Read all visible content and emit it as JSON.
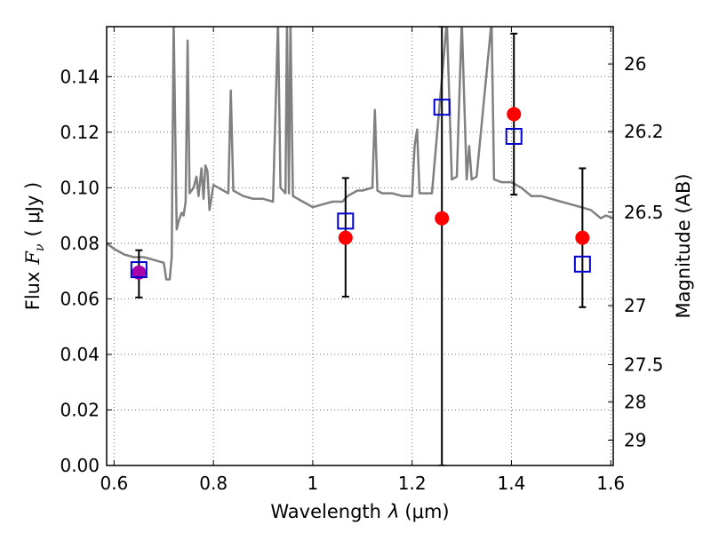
{
  "chart_data": {
    "type": "scatter",
    "xlabel_text": "Wavelength",
    "xlabel_symbol": "λ",
    "xlabel_unit": "(μm)",
    "ylabel_text": "Flux",
    "ylabel_symbol": "F",
    "ylabel_sub": "ν",
    "ylabel_unit": "( μJy )",
    "y2label": "Magnitude (AB)",
    "xlim": [
      0.585,
      1.605
    ],
    "ylim": [
      0.0,
      0.158
    ],
    "x_ticks": [
      0.6,
      0.8,
      1.0,
      1.2,
      1.4,
      1.6
    ],
    "x_tick_labels": [
      "0.6",
      "0.8",
      "1",
      "1.2",
      "1.4",
      "1.6"
    ],
    "y_ticks": [
      0.0,
      0.02,
      0.04,
      0.06,
      0.08,
      0.1,
      0.12,
      0.14
    ],
    "y_tick_labels": [
      "0.00",
      "0.02",
      "0.04",
      "0.06",
      "0.08",
      "0.10",
      "0.12",
      "0.14"
    ],
    "y2_ticks": [
      {
        "label": "26",
        "mag": 26.0
      },
      {
        "label": "26.2",
        "mag": 26.2
      },
      {
        "label": "26.5",
        "mag": 26.5
      },
      {
        "label": "27",
        "mag": 27.0
      },
      {
        "label": "27.5",
        "mag": 27.5
      },
      {
        "label": "28",
        "mag": 28.0
      },
      {
        "label": "29",
        "mag": 29.0
      }
    ],
    "grid": true,
    "series": [
      {
        "kind": "model-spectrum-line",
        "color": "#808080",
        "points": [
          [
            0.585,
            0.08
          ],
          [
            0.6,
            0.078
          ],
          [
            0.62,
            0.076
          ],
          [
            0.64,
            0.075
          ],
          [
            0.66,
            0.075
          ],
          [
            0.68,
            0.074
          ],
          [
            0.7,
            0.073
          ],
          [
            0.705,
            0.067
          ],
          [
            0.712,
            0.067
          ],
          [
            0.716,
            0.075
          ],
          [
            0.72,
            0.16
          ],
          [
            0.726,
            0.085
          ],
          [
            0.73,
            0.088
          ],
          [
            0.736,
            0.091
          ],
          [
            0.74,
            0.09
          ],
          [
            0.744,
            0.095
          ],
          [
            0.748,
            0.153
          ],
          [
            0.752,
            0.098
          ],
          [
            0.76,
            0.1
          ],
          [
            0.766,
            0.104
          ],
          [
            0.77,
            0.097
          ],
          [
            0.776,
            0.107
          ],
          [
            0.78,
            0.096
          ],
          [
            0.784,
            0.108
          ],
          [
            0.788,
            0.106
          ],
          [
            0.792,
            0.092
          ],
          [
            0.8,
            0.101
          ],
          [
            0.82,
            0.099
          ],
          [
            0.83,
            0.098
          ],
          [
            0.835,
            0.135
          ],
          [
            0.84,
            0.099
          ],
          [
            0.86,
            0.097
          ],
          [
            0.88,
            0.096
          ],
          [
            0.9,
            0.096
          ],
          [
            0.92,
            0.095
          ],
          [
            0.93,
            0.16
          ],
          [
            0.935,
            0.1
          ],
          [
            0.945,
            0.098
          ],
          [
            0.948,
            0.16
          ],
          [
            0.952,
            0.098
          ],
          [
            0.955,
            0.16
          ],
          [
            0.96,
            0.097
          ],
          [
            0.98,
            0.095
          ],
          [
            1.0,
            0.093
          ],
          [
            1.02,
            0.094
          ],
          [
            1.04,
            0.095
          ],
          [
            1.06,
            0.095
          ],
          [
            1.07,
            0.097
          ],
          [
            1.09,
            0.099
          ],
          [
            1.1,
            0.099
          ],
          [
            1.12,
            0.1
          ],
          [
            1.125,
            0.128
          ],
          [
            1.13,
            0.099
          ],
          [
            1.14,
            0.098
          ],
          [
            1.16,
            0.098
          ],
          [
            1.18,
            0.097
          ],
          [
            1.2,
            0.097
          ],
          [
            1.205,
            0.115
          ],
          [
            1.21,
            0.121
          ],
          [
            1.215,
            0.098
          ],
          [
            1.22,
            0.098
          ],
          [
            1.24,
            0.098
          ],
          [
            1.27,
            0.16
          ],
          [
            1.28,
            0.103
          ],
          [
            1.29,
            0.104
          ],
          [
            1.3,
            0.16
          ],
          [
            1.31,
            0.103
          ],
          [
            1.315,
            0.115
          ],
          [
            1.32,
            0.103
          ],
          [
            1.33,
            0.104
          ],
          [
            1.36,
            0.16
          ],
          [
            1.365,
            0.103
          ],
          [
            1.38,
            0.102
          ],
          [
            1.4,
            0.102
          ],
          [
            1.42,
            0.1
          ],
          [
            1.44,
            0.097
          ],
          [
            1.46,
            0.097
          ],
          [
            1.5,
            0.095
          ],
          [
            1.52,
            0.094
          ],
          [
            1.54,
            0.093
          ],
          [
            1.56,
            0.092
          ],
          [
            1.58,
            0.089
          ],
          [
            1.59,
            0.09
          ],
          [
            1.605,
            0.089
          ]
        ]
      },
      {
        "kind": "observed-with-errorbars",
        "color": "#ff0000",
        "marker": "circle",
        "points": [
          {
            "x": 0.65,
            "y": 0.0695,
            "ylo": 0.0605,
            "yhi": 0.0775,
            "color": "#aa00aa"
          },
          {
            "x": 1.066,
            "y": 0.082,
            "ylo": 0.0608,
            "yhi": 0.1035
          },
          {
            "x": 1.26,
            "y": 0.089,
            "ylo": 0.0,
            "yhi": 0.158
          },
          {
            "x": 1.405,
            "y": 0.1265,
            "ylo": 0.0975,
            "yhi": 0.1555
          },
          {
            "x": 1.543,
            "y": 0.082,
            "ylo": 0.057,
            "yhi": 0.107
          }
        ]
      },
      {
        "kind": "model-photometry",
        "color": "#0000cc",
        "marker": "open-square",
        "points": [
          {
            "x": 0.65,
            "y": 0.0705
          },
          {
            "x": 1.066,
            "y": 0.088
          },
          {
            "x": 1.26,
            "y": 0.129
          },
          {
            "x": 1.405,
            "y": 0.1185
          },
          {
            "x": 1.543,
            "y": 0.0725
          }
        ]
      }
    ]
  }
}
